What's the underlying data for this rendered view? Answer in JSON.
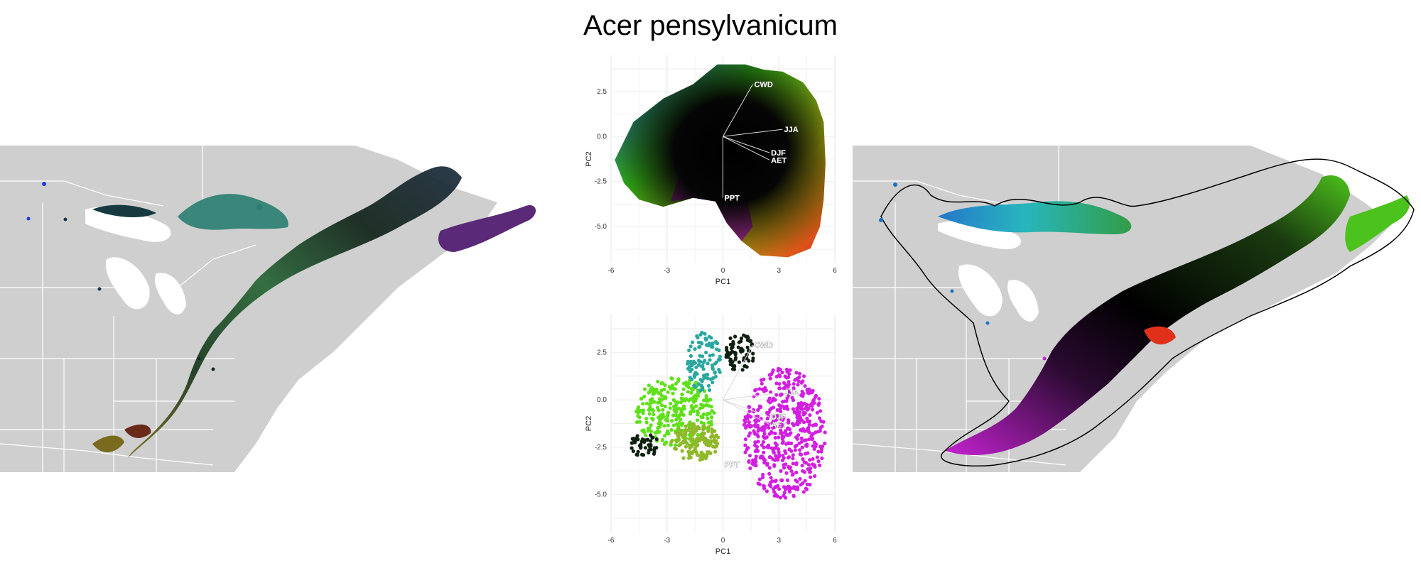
{
  "title": "Acer pensylvanicum",
  "chart_data": [
    {
      "type": "scatter",
      "panel": "pca-climate-space",
      "title": "",
      "xlabel": "PC1",
      "ylabel": "PC2",
      "xlim": [
        -6,
        6
      ],
      "ylim": [
        -7,
        4.5
      ],
      "xticks": [
        "-6",
        "-3",
        "0",
        "3",
        "6"
      ],
      "yticks": [
        "2.5",
        "0.0",
        "-2.5",
        "-5.0"
      ],
      "xtick_values": [
        -6,
        -3,
        0,
        3,
        6
      ],
      "ytick_values": [
        2.5,
        0,
        -2.5,
        -5
      ],
      "grid": true,
      "vectors": [
        {
          "label": "CWD",
          "x": 1.6,
          "y": 2.9
        },
        {
          "label": "JJA",
          "x": 3.2,
          "y": 0.4
        },
        {
          "label": "DJF",
          "x": 2.5,
          "y": -0.9
        },
        {
          "label": "AET",
          "x": 2.5,
          "y": -1.3
        },
        {
          "label": "PPT",
          "x": 0.0,
          "y": -3.4
        }
      ],
      "colors": {
        "green": "#3bd11a",
        "blue": "#1b3fd6",
        "magenta": "#c51fd0",
        "red": "#e0201c",
        "yellow": "#d8d812",
        "center": "#000000"
      }
    },
    {
      "type": "scatter",
      "panel": "pca-occurrence-points",
      "title": "",
      "xlabel": "PC1",
      "ylabel": "PC2",
      "xlim": [
        -6,
        6
      ],
      "ylim": [
        -7,
        4.5
      ],
      "xticks": [
        "-6",
        "-3",
        "0",
        "3",
        "6"
      ],
      "yticks": [
        "2.5",
        "0.0",
        "-2.5",
        "-5.0"
      ],
      "xtick_values": [
        -6,
        -3,
        0,
        3,
        6
      ],
      "ytick_values": [
        2.5,
        0,
        -2.5,
        -5
      ],
      "grid": true,
      "vectors": [
        {
          "label": "CWD",
          "x": 1.6,
          "y": 2.9
        },
        {
          "label": "JJA",
          "x": 3.2,
          "y": 0.4
        },
        {
          "label": "DJF",
          "x": 2.5,
          "y": -0.9
        },
        {
          "label": "AET",
          "x": 2.5,
          "y": -1.3
        },
        {
          "label": "PPT",
          "x": 0.0,
          "y": -3.4
        }
      ],
      "colors": {
        "green": "#5fe01a",
        "olive": "#8fb82a",
        "teal": "#2aa8a0",
        "magenta": "#d21fe0",
        "dark": "#102010"
      }
    }
  ],
  "maps": {
    "left": {
      "land": "#cfcfcf",
      "borders": "#ffffff",
      "range_dark": "#16281e",
      "range_green": "#2f6f3a",
      "range_teal": "#2a7d70",
      "range_purple": "#5a2a78",
      "range_olive": "#7a6a1e"
    },
    "right": {
      "land": "#cfcfcf",
      "borders": "#ffffff",
      "outline": "#000000",
      "range_dark": "#000000",
      "range_green": "#4cc21c",
      "range_teal": "#1fb5bd",
      "range_blue": "#1b72c8",
      "range_magenta": "#c422d0",
      "range_red": "#e0301a"
    }
  }
}
